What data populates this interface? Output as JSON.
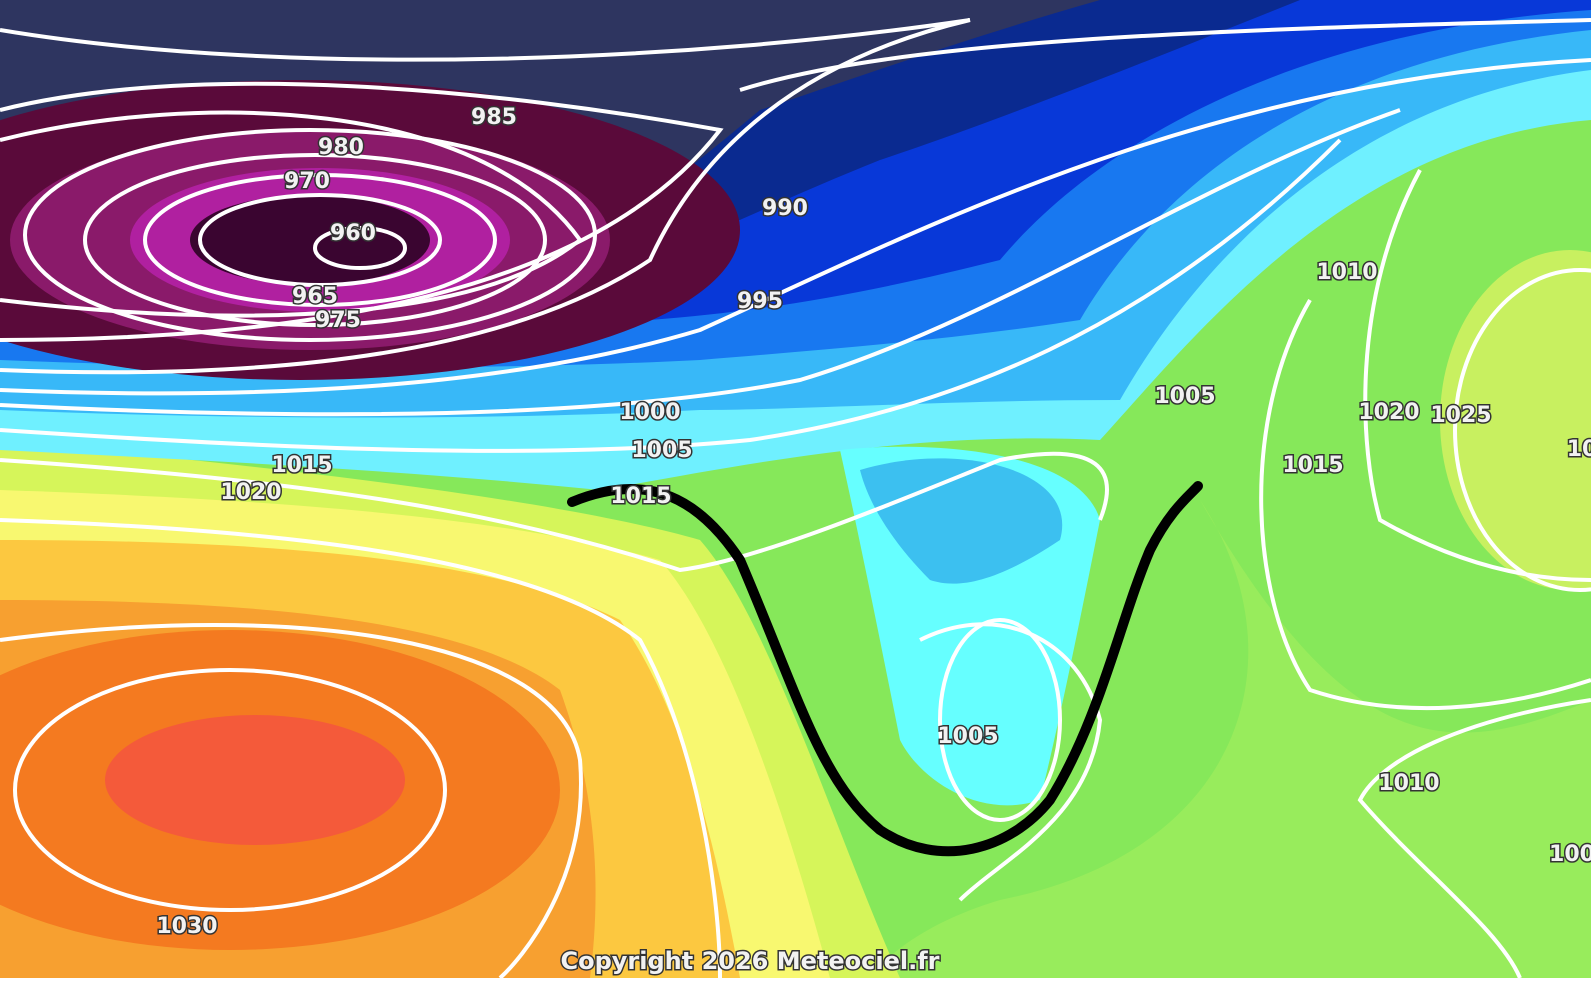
{
  "labels": [
    "985",
    "980",
    "970",
    "960",
    "965",
    "975",
    "990",
    "995",
    "1000",
    "1005",
    "1015",
    "1020",
    "1015",
    "1030",
    "1005",
    "1005",
    "1010",
    "1020",
    "1025",
    "1015",
    "1010",
    "100",
    "10"
  ],
  "copyright": "Copyright 2026 Meteociel.fr"
}
